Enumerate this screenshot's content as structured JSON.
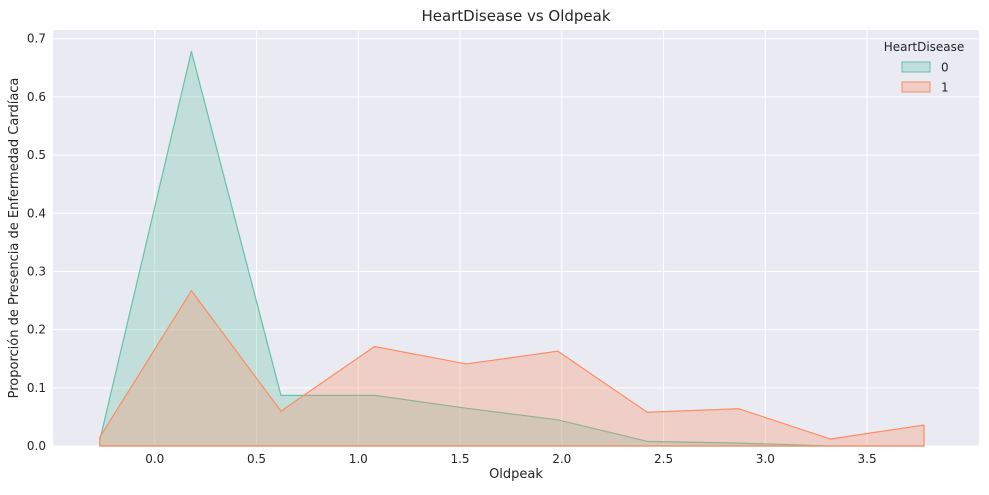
{
  "chart_data": {
    "type": "area",
    "title": "HeartDisease vs Oldpeak",
    "xlabel": "Oldpeak",
    "ylabel": "Proporción de Presencia de Enfermedad Cardíaca",
    "xlim": [
      -0.5,
      4.05
    ],
    "ylim": [
      0,
      0.715
    ],
    "xticks": [
      0.0,
      0.5,
      1.0,
      1.5,
      2.0,
      2.5,
      3.0,
      3.5
    ],
    "xtick_labels": [
      "0.0",
      "0.5",
      "1.0",
      "1.5",
      "2.0",
      "2.5",
      "3.0",
      "3.5"
    ],
    "yticks": [
      0.0,
      0.1,
      0.2,
      0.3,
      0.4,
      0.5,
      0.6,
      0.7
    ],
    "ytick_labels": [
      "0.0",
      "0.1",
      "0.2",
      "0.3",
      "0.4",
      "0.5",
      "0.6",
      "0.7"
    ],
    "grid": true,
    "legend": {
      "title": "HeartDisease",
      "placement": "top-right"
    },
    "series": [
      {
        "name": "0",
        "color": "#66c2a5",
        "x": [
          -0.27,
          -0.27,
          0.18,
          0.62,
          1.08,
          1.53,
          1.98,
          2.42,
          2.87,
          3.32,
          3.78,
          3.78
        ],
        "y": [
          0.0,
          0.01,
          0.678,
          0.087,
          0.087,
          0.065,
          0.045,
          0.008,
          0.005,
          0.0,
          0.0,
          0.0
        ]
      },
      {
        "name": "1",
        "color": "#fc8d62",
        "x": [
          -0.27,
          -0.27,
          0.18,
          0.62,
          1.08,
          1.53,
          1.98,
          2.42,
          2.87,
          3.32,
          3.78,
          3.78
        ],
        "y": [
          0.0,
          0.015,
          0.267,
          0.06,
          0.171,
          0.141,
          0.163,
          0.058,
          0.064,
          0.012,
          0.036,
          0.0
        ]
      }
    ]
  }
}
